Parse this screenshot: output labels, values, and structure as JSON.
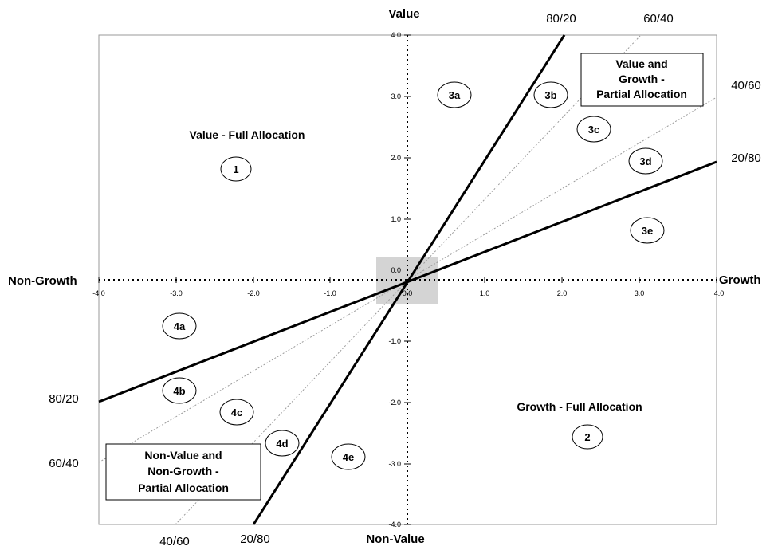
{
  "axes": {
    "top": "Value",
    "bottom": "Non-Value",
    "left": "Non-Growth",
    "right": "Growth",
    "x_ticks": [
      "-4.0",
      "-3.0",
      "-2.0",
      "-1.0",
      "0.0",
      "1.0",
      "2.0",
      "3.0",
      "4.0"
    ],
    "y_ticks": [
      "4.0",
      "3.0",
      "2.0",
      "1.0",
      "0.0",
      "-1.0",
      "-2.0",
      "-3.0",
      "-4.0"
    ],
    "range": [
      -4,
      4
    ]
  },
  "ratio_lines": {
    "r80_20_top": "80/20",
    "r60_40_top": "60/40",
    "r40_60_right": "40/60",
    "r20_80_right": "20/80",
    "r80_20_left": "80/20",
    "r60_40_left": "60/40",
    "r40_60_bottom": "40/60",
    "r20_80_bottom": "20/80"
  },
  "zones": {
    "value_full": "Value - Full Allocation",
    "growth_full": "Growth - Full Allocation",
    "value_growth_partial": [
      "Value and",
      "Growth -",
      "Partial Allocation"
    ],
    "nonvalue_nongrowth_partial": [
      "Non-Value and",
      "Non-Growth -",
      "Partial Allocation"
    ]
  },
  "ovals": {
    "o1": "1",
    "o2": "2",
    "o3a": "3a",
    "o3b": "3b",
    "o3c": "3c",
    "o3d": "3d",
    "o3e": "3e",
    "o4a": "4a",
    "o4b": "4b",
    "o4c": "4c",
    "o4d": "4d",
    "o4e": "4e"
  },
  "colors": {
    "solid_line": "#000000",
    "dashed_line": "#9a9a9a",
    "center_square": "#d4d4d4"
  }
}
